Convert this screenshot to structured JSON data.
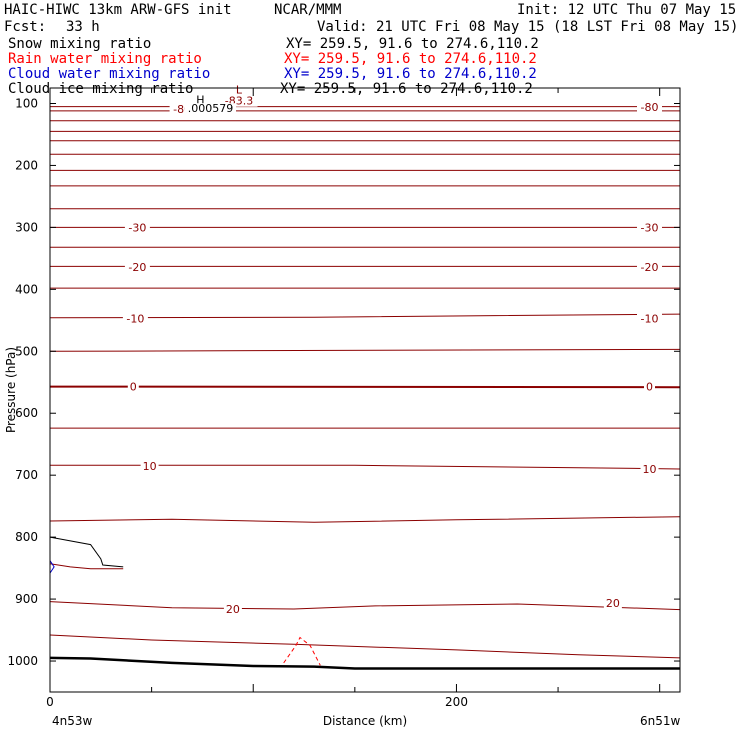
{
  "header": {
    "model": "HAIC-HIWC 13km ARW-GFS init",
    "org": "NCAR/MMM",
    "init": "Init: 12 UTC Thu 07 May 15",
    "fcst_label": "Fcst:",
    "fcst_value": "33 h",
    "valid": "Valid: 21 UTC Fri 08 May 15 (18 LST Fri 08 May 15)",
    "fields": [
      {
        "name": "Snow mixing ratio",
        "xy": "XY= 259.5, 91.6 to 274.6,110.2",
        "color": "#000000"
      },
      {
        "name": "Rain water mixing ratio",
        "xy": "XY= 259.5, 91.6 to 274.6,110.2",
        "color": "#ff0000"
      },
      {
        "name": "Cloud water mixing ratio",
        "xy": "XY= 259.5, 91.6 to 274.6,110.2",
        "color": "#0000cc"
      },
      {
        "name": "Cloud ice mixing ratio",
        "xy": "XY= 259.5, 91.6 to 274.6,110.2",
        "color": "#000000"
      }
    ]
  },
  "chart_data": {
    "type": "line",
    "title": "",
    "xlabel": "Distance (km)",
    "ylabel": "Pressure (hPa)",
    "xlim": [
      0,
      310
    ],
    "ylim": [
      1050,
      75
    ],
    "x_ticks": [
      0,
      200
    ],
    "x_tick_labels": [
      "0",
      "200"
    ],
    "y_ticks": [
      100,
      200,
      300,
      400,
      500,
      600,
      700,
      800,
      900,
      1000
    ],
    "y_tick_labels": [
      "100",
      "200",
      "300",
      "400",
      "500",
      "600",
      "700",
      "800",
      "900",
      "1000"
    ],
    "x_start_label": "4n53w",
    "x_end_label": "6n51w",
    "line_color": "#8b0000",
    "isotherms": [
      {
        "label": "-80",
        "values": [
          [
            0,
            105
          ],
          [
            310,
            105
          ]
        ]
      },
      {
        "label": "",
        "values": [
          [
            0,
            112
          ],
          [
            310,
            112
          ]
        ]
      },
      {
        "label": "",
        "values": [
          [
            0,
            128
          ],
          [
            310,
            128
          ]
        ]
      },
      {
        "label": "",
        "values": [
          [
            0,
            145
          ],
          [
            310,
            145
          ]
        ]
      },
      {
        "label": "",
        "values": [
          [
            0,
            160
          ],
          [
            310,
            160
          ]
        ]
      },
      {
        "label": "",
        "values": [
          [
            0,
            182
          ],
          [
            310,
            182
          ]
        ]
      },
      {
        "label": "",
        "values": [
          [
            0,
            208
          ],
          [
            310,
            208
          ]
        ]
      },
      {
        "label": "",
        "values": [
          [
            0,
            233
          ],
          [
            310,
            233
          ]
        ]
      },
      {
        "label": "",
        "values": [
          [
            0,
            270
          ],
          [
            310,
            270
          ]
        ]
      },
      {
        "label": "-30",
        "values": [
          [
            0,
            300
          ],
          [
            310,
            300
          ]
        ]
      },
      {
        "label": "",
        "values": [
          [
            0,
            332
          ],
          [
            310,
            332
          ]
        ]
      },
      {
        "label": "-20",
        "values": [
          [
            0,
            363
          ],
          [
            310,
            363
          ]
        ]
      },
      {
        "label": "",
        "values": [
          [
            0,
            398
          ],
          [
            310,
            398
          ]
        ]
      },
      {
        "label": "-10",
        "values": [
          [
            0,
            446
          ],
          [
            130,
            445
          ],
          [
            310,
            440
          ]
        ]
      },
      {
        "label": "",
        "values": [
          [
            0,
            500
          ],
          [
            310,
            497
          ]
        ]
      },
      {
        "label": "0",
        "values": [
          [
            0,
            557
          ],
          [
            310,
            558
          ]
        ]
      },
      {
        "label": "",
        "values": [
          [
            0,
            624
          ],
          [
            310,
            624
          ]
        ]
      },
      {
        "label": "10",
        "values": [
          [
            0,
            684
          ],
          [
            150,
            684
          ],
          [
            260,
            688
          ],
          [
            310,
            690
          ]
        ]
      },
      {
        "label": "",
        "values": [
          [
            0,
            774
          ],
          [
            60,
            771
          ],
          [
            130,
            776
          ],
          [
            200,
            772
          ],
          [
            310,
            767
          ]
        ]
      },
      {
        "label": "20",
        "values": [
          [
            0,
            904
          ],
          [
            60,
            914
          ],
          [
            120,
            916
          ],
          [
            160,
            911
          ],
          [
            230,
            908
          ],
          [
            310,
            917
          ]
        ]
      },
      {
        "label": "",
        "values": [
          [
            0,
            958
          ],
          [
            50,
            966
          ],
          [
            120,
            973
          ],
          [
            200,
            982
          ],
          [
            260,
            990
          ],
          [
            310,
            995
          ]
        ]
      }
    ],
    "isotherm_labels": [
      {
        "label": "-80",
        "x": 65,
        "p": 109
      },
      {
        "label": "-80",
        "x": 295,
        "p": 106
      },
      {
        "label": "-30",
        "x": 43,
        "p": 300
      },
      {
        "label": "-30",
        "x": 295,
        "p": 300
      },
      {
        "label": "-20",
        "x": 43,
        "p": 364
      },
      {
        "label": "-20",
        "x": 295,
        "p": 364
      },
      {
        "label": "-10",
        "x": 42,
        "p": 447
      },
      {
        "label": "-10",
        "x": 295,
        "p": 447
      },
      {
        "label": "0",
        "x": 41,
        "p": 557
      },
      {
        "label": "0",
        "x": 295,
        "p": 557
      },
      {
        "label": "10",
        "x": 49,
        "p": 685
      },
      {
        "label": "10",
        "x": 295,
        "p": 690
      },
      {
        "label": "20",
        "x": 90,
        "p": 916
      },
      {
        "label": "20",
        "x": 277,
        "p": 906
      }
    ],
    "annotations": [
      {
        "text": "L",
        "x": 93,
        "p": 84,
        "color": "#8b0000"
      },
      {
        "text": "-83.3",
        "x": 93,
        "p": 102,
        "color": "#8b0000"
      },
      {
        "text": "H",
        "x": 74,
        "p": 100,
        "color": "#000000"
      },
      {
        "text": ".000579",
        "x": 79,
        "p": 114,
        "color": "#000000"
      }
    ],
    "terrain": {
      "color": "#000000",
      "values": [
        [
          0,
          995
        ],
        [
          20,
          996
        ],
        [
          60,
          1003
        ],
        [
          100,
          1008
        ],
        [
          130,
          1009
        ],
        [
          150,
          1012
        ],
        [
          200,
          1012
        ],
        [
          260,
          1012
        ],
        [
          310,
          1012
        ]
      ]
    },
    "cloud_water": {
      "color": "#0000cc",
      "values": [
        [
          0,
          838
        ],
        [
          2,
          848
        ],
        [
          0,
          858
        ]
      ]
    },
    "snow": {
      "color": "#000000",
      "values": [
        [
          0,
          800
        ],
        [
          20,
          812
        ],
        [
          25,
          835
        ],
        [
          26,
          845
        ],
        [
          36,
          848
        ]
      ]
    },
    "rain_water": {
      "color": "#ff0000",
      "values": [
        [
          115,
          1003
        ],
        [
          121,
          975
        ],
        [
          123,
          962
        ],
        [
          128,
          975
        ],
        [
          133,
          1007
        ]
      ]
    }
  }
}
